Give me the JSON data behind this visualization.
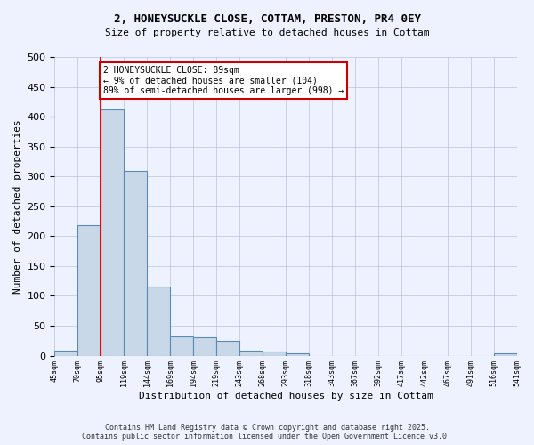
{
  "title_line1": "2, HONEYSUCKLE CLOSE, COTTAM, PRESTON, PR4 0EY",
  "title_line2": "Size of property relative to detached houses in Cottam",
  "xlabel": "Distribution of detached houses by size in Cottam",
  "ylabel": "Number of detached properties",
  "bar_values": [
    8,
    218,
    412,
    310,
    115,
    32,
    30,
    25,
    8,
    7,
    4,
    0,
    0,
    0,
    0,
    0,
    0,
    0,
    0,
    4
  ],
  "bar_labels": [
    "45sqm",
    "70sqm",
    "95sqm",
    "119sqm",
    "144sqm",
    "169sqm",
    "194sqm",
    "219sqm",
    "243sqm",
    "268sqm",
    "293sqm",
    "318sqm",
    "343sqm",
    "367sqm",
    "392sqm",
    "417sqm",
    "442sqm",
    "467sqm",
    "491sqm",
    "516sqm",
    "541sqm"
  ],
  "bar_color": "#c8d8e8",
  "bar_edge_color": "#5a8ab5",
  "annotation_text": "2 HONEYSUCKLE CLOSE: 89sqm\n← 9% of detached houses are smaller (104)\n89% of semi-detached houses are larger (998) →",
  "annotation_box_color": "#ffffff",
  "annotation_box_edge": "#cc0000",
  "red_line_x": 1.5,
  "ylim": [
    0,
    500
  ],
  "yticks": [
    0,
    50,
    100,
    150,
    200,
    250,
    300,
    350,
    400,
    450,
    500
  ],
  "footer_line1": "Contains HM Land Registry data © Crown copyright and database right 2025.",
  "footer_line2": "Contains public sector information licensed under the Open Government Licence v3.0.",
  "background_color": "#eef2ff"
}
